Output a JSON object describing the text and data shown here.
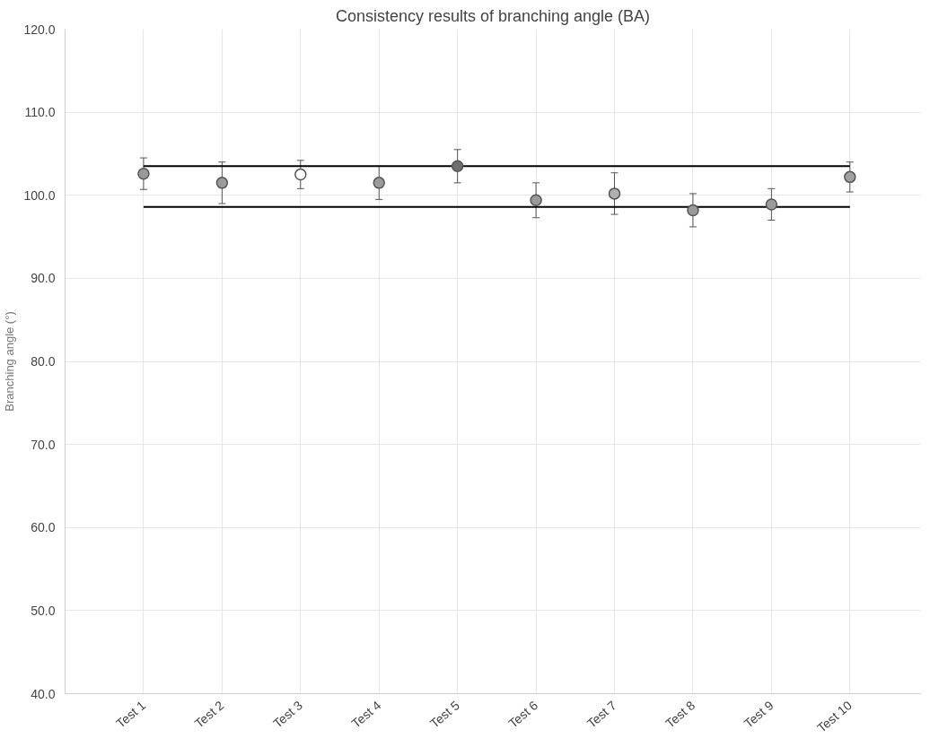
{
  "chart_data": {
    "type": "scatter",
    "title": "Consistency results of branching angle (BA)",
    "ylabel": "Branching angle (°)",
    "categories": [
      "Test 1",
      "Test 2",
      "Test 3",
      "Test 4",
      "Test 5",
      "Test 6",
      "Test 7",
      "Test 8",
      "Test 9",
      "Test 10"
    ],
    "values": [
      102.6,
      101.5,
      102.5,
      101.5,
      103.5,
      99.4,
      100.2,
      98.2,
      98.9,
      102.2
    ],
    "errors": [
      1.9,
      2.5,
      1.7,
      2.0,
      2.0,
      2.1,
      2.5,
      2.0,
      1.9,
      1.8
    ],
    "colors": [
      "#9a9a9a",
      "#9a9a9a",
      "#ffffff",
      "#9a9a9a",
      "#6e6e6e",
      "#9a9a9a",
      "#b0b0b0",
      "#9a9a9a",
      "#9a9a9a",
      "#a0a0a0"
    ],
    "marker": "circle",
    "ylim": [
      40,
      120
    ],
    "yticks": [
      {
        "value": 40,
        "label": "40.0"
      },
      {
        "value": 50,
        "label": "50.0"
      },
      {
        "value": 60,
        "label": "60.0"
      },
      {
        "value": 70,
        "label": "70.0"
      },
      {
        "value": 80,
        "label": "80.0"
      },
      {
        "value": 90,
        "label": "90.0"
      },
      {
        "value": 100,
        "label": "100.0"
      },
      {
        "value": 110,
        "label": "110.0"
      },
      {
        "value": 120,
        "label": "120.0"
      }
    ],
    "ref_lines": [
      {
        "axis": "y",
        "value": 103.5,
        "color": "#000000"
      },
      {
        "axis": "y",
        "value": 98.6,
        "color": "#000000"
      }
    ],
    "grid": true
  }
}
